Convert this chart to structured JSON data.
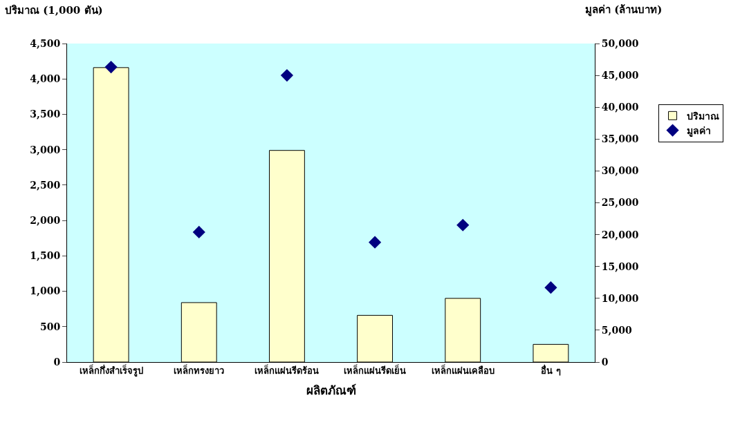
{
  "chart_data": {
    "type": "bar",
    "xlabel": "ผลิตภัณฑ์",
    "ylabel": "ปริมาณ (1,000 ตัน)",
    "y2label": "มูลค่า (ล้านบาท)",
    "categories": [
      "เหล็กกึ่งสำเร็จรูป",
      "เหล็กทรงยาว",
      "เหล็กแผ่นรีดร้อน",
      "เหล็กแผ่นรีดเย็น",
      "เหล็กแผ่นเคลือบ",
      "อื่น ๆ"
    ],
    "series": [
      {
        "name": "ปริมาณ",
        "color": "#ffffcc",
        "values": [
          4160,
          840,
          2990,
          660,
          900,
          250
        ]
      },
      {
        "name": "มูลค่า",
        "type": "scatter",
        "axis": "y2",
        "marker": "diamond",
        "color": "#000080",
        "values": [
          46300,
          20400,
          45000,
          18800,
          21500,
          11700
        ]
      }
    ],
    "ylim": [
      0,
      4500
    ],
    "yticks": [
      {
        "value": 0,
        "label": "0"
      },
      {
        "value": 500,
        "label": "500"
      },
      {
        "value": 1000,
        "label": "1,000"
      },
      {
        "value": 1500,
        "label": "1,500"
      },
      {
        "value": 2000,
        "label": "2,000"
      },
      {
        "value": 2500,
        "label": "2,500"
      },
      {
        "value": 3000,
        "label": "3,000"
      },
      {
        "value": 3500,
        "label": "3,500"
      },
      {
        "value": 4000,
        "label": "4,000"
      },
      {
        "value": 4500,
        "label": "4,500"
      }
    ],
    "y2lim": [
      0,
      50000
    ],
    "y2ticks": [
      {
        "value": 0,
        "label": "0"
      },
      {
        "value": 5000,
        "label": "5,000"
      },
      {
        "value": 10000,
        "label": "10,000"
      },
      {
        "value": 15000,
        "label": "15,000"
      },
      {
        "value": 20000,
        "label": "20,000"
      },
      {
        "value": 25000,
        "label": "25,000"
      },
      {
        "value": 30000,
        "label": "30,000"
      },
      {
        "value": 35000,
        "label": "35,000"
      },
      {
        "value": 40000,
        "label": "40,000"
      },
      {
        "value": 45000,
        "label": "45,000"
      },
      {
        "value": 50000,
        "label": "50,000"
      }
    ],
    "grid": false,
    "legend": "right"
  }
}
